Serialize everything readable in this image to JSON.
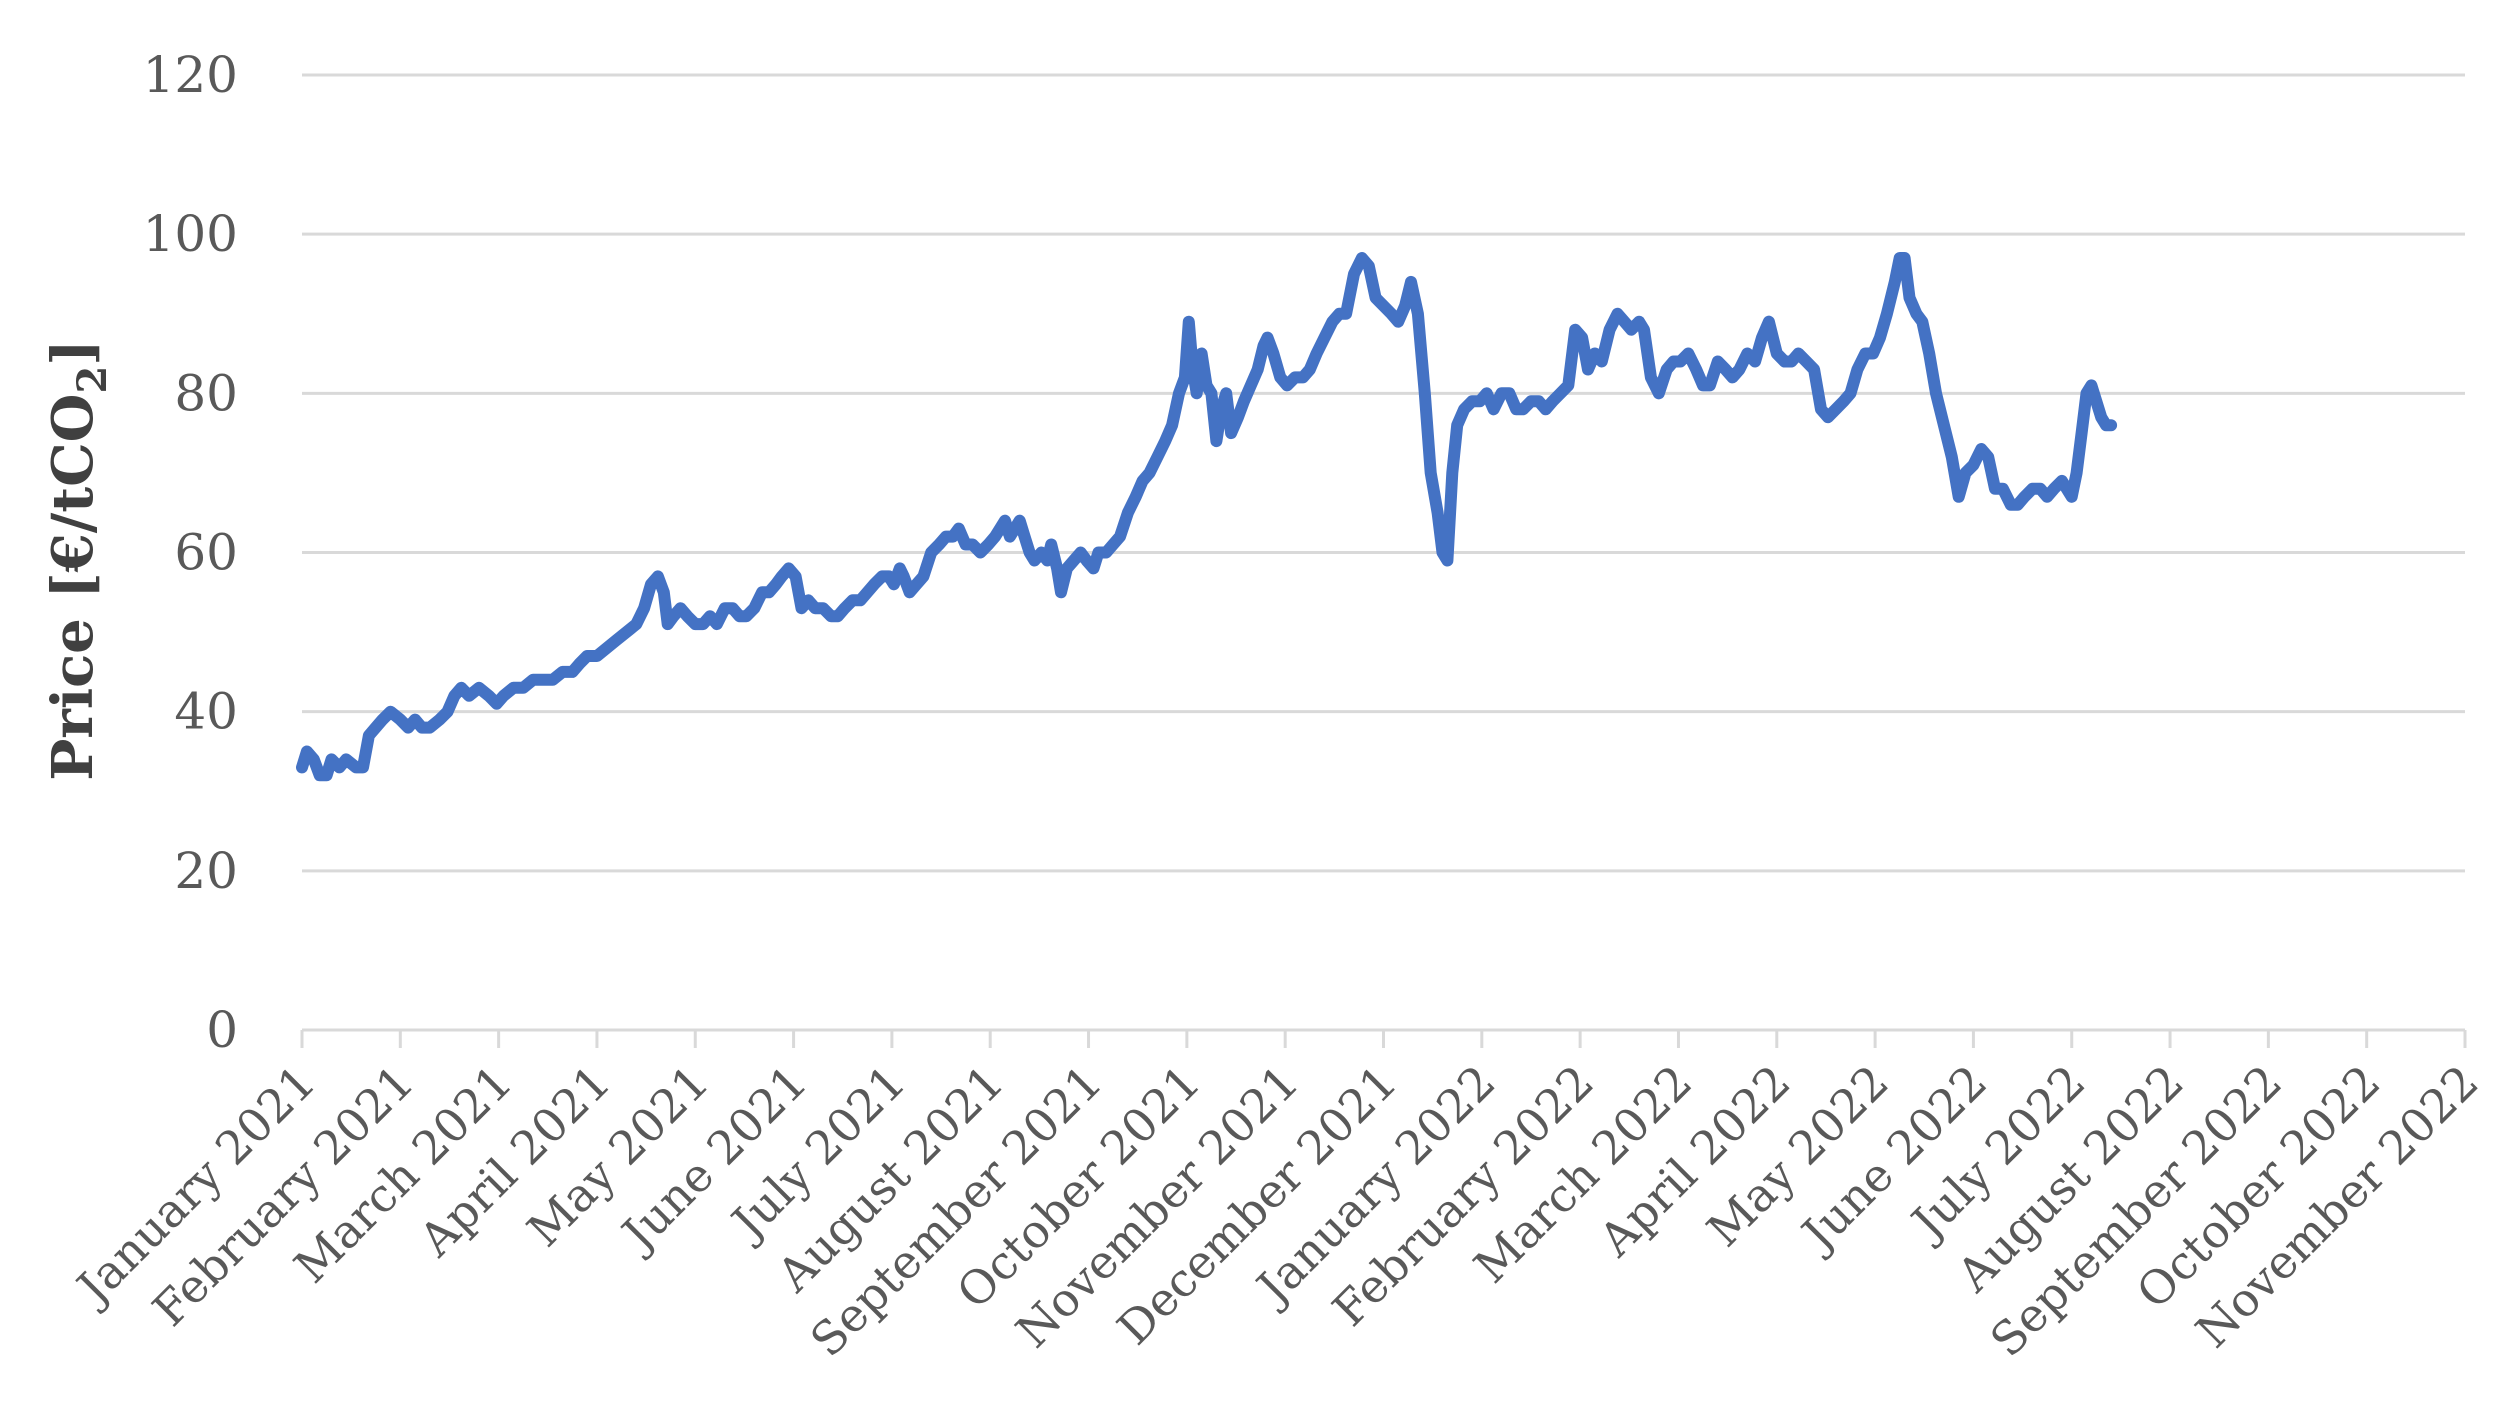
{
  "chart_data": {
    "type": "line",
    "title": "",
    "xlabel": "",
    "ylabel": "Price [€/tCO",
    "ylabel_subscript": "2",
    "ylabel_suffix": "]",
    "ylim": [
      0,
      120
    ],
    "yticks": [
      0,
      20,
      40,
      60,
      80,
      100,
      120
    ],
    "grid": true,
    "legend": "none",
    "categories": [
      "January 2021",
      "February 2021",
      "March 2021",
      "April 2021",
      "May 2021",
      "June 2021",
      "July 2021",
      "August 2021",
      "September 2021",
      "October 2021",
      "November 2021",
      "December 2021",
      "January 2022",
      "February 2022",
      "March 2022",
      "April 2022",
      "May 2022",
      "June 2022",
      "July 2022",
      "August 2022",
      "September 2022",
      "October 2022",
      "November 2022"
    ],
    "series": [
      {
        "color": "#4472c4",
        "points": [
          [
            0.0,
            33
          ],
          [
            0.05,
            35
          ],
          [
            0.12,
            34
          ],
          [
            0.18,
            32
          ],
          [
            0.25,
            32
          ],
          [
            0.3,
            34
          ],
          [
            0.38,
            33
          ],
          [
            0.45,
            34
          ],
          [
            0.55,
            33
          ],
          [
            0.62,
            33
          ],
          [
            0.68,
            37
          ],
          [
            0.75,
            38
          ],
          [
            0.82,
            39
          ],
          [
            0.9,
            40
          ],
          [
            1.0,
            39
          ],
          [
            1.08,
            38
          ],
          [
            1.15,
            39
          ],
          [
            1.22,
            38
          ],
          [
            1.3,
            38
          ],
          [
            1.4,
            39
          ],
          [
            1.48,
            40
          ],
          [
            1.55,
            42
          ],
          [
            1.62,
            43
          ],
          [
            1.7,
            42
          ],
          [
            1.8,
            43
          ],
          [
            1.9,
            42
          ],
          [
            1.98,
            41
          ],
          [
            2.05,
            42
          ],
          [
            2.15,
            43
          ],
          [
            2.25,
            43
          ],
          [
            2.35,
            44
          ],
          [
            2.45,
            44
          ],
          [
            2.55,
            44
          ],
          [
            2.65,
            45
          ],
          [
            2.75,
            45
          ],
          [
            2.82,
            46
          ],
          [
            2.9,
            47
          ],
          [
            3.0,
            47
          ],
          [
            3.1,
            48
          ],
          [
            3.2,
            49
          ],
          [
            3.3,
            50
          ],
          [
            3.4,
            51
          ],
          [
            3.48,
            53
          ],
          [
            3.55,
            56
          ],
          [
            3.62,
            57
          ],
          [
            3.68,
            55
          ],
          [
            3.72,
            51
          ],
          [
            3.78,
            52
          ],
          [
            3.85,
            53
          ],
          [
            3.92,
            52
          ],
          [
            4.0,
            51
          ],
          [
            4.08,
            51
          ],
          [
            4.15,
            52
          ],
          [
            4.22,
            51
          ],
          [
            4.3,
            53
          ],
          [
            4.38,
            53
          ],
          [
            4.45,
            52
          ],
          [
            4.52,
            52
          ],
          [
            4.6,
            53
          ],
          [
            4.68,
            55
          ],
          [
            4.75,
            55
          ],
          [
            4.82,
            56
          ],
          [
            4.88,
            57
          ],
          [
            4.95,
            58
          ],
          [
            5.02,
            57
          ],
          [
            5.08,
            53
          ],
          [
            5.15,
            54
          ],
          [
            5.22,
            53
          ],
          [
            5.3,
            53
          ],
          [
            5.38,
            52
          ],
          [
            5.45,
            52
          ],
          [
            5.52,
            53
          ],
          [
            5.6,
            54
          ],
          [
            5.68,
            54
          ],
          [
            5.75,
            55
          ],
          [
            5.82,
            56
          ],
          [
            5.9,
            57
          ],
          [
            5.97,
            57
          ],
          [
            6.02,
            56
          ],
          [
            6.08,
            58
          ],
          [
            6.12,
            57
          ],
          [
            6.18,
            55
          ],
          [
            6.25,
            56
          ],
          [
            6.32,
            57
          ],
          [
            6.4,
            60
          ],
          [
            6.48,
            61
          ],
          [
            6.55,
            62
          ],
          [
            6.62,
            62
          ],
          [
            6.68,
            63
          ],
          [
            6.75,
            61
          ],
          [
            6.82,
            61
          ],
          [
            6.9,
            60
          ],
          [
            6.98,
            61
          ],
          [
            7.05,
            62
          ],
          [
            7.1,
            63
          ],
          [
            7.15,
            64
          ],
          [
            7.2,
            62
          ],
          [
            7.25,
            63
          ],
          [
            7.3,
            64
          ],
          [
            7.35,
            62
          ],
          [
            7.4,
            60
          ],
          [
            7.45,
            59
          ],
          [
            7.52,
            60
          ],
          [
            7.58,
            59
          ],
          [
            7.62,
            61
          ],
          [
            7.68,
            58
          ],
          [
            7.72,
            55
          ],
          [
            7.78,
            58
          ],
          [
            7.85,
            59
          ],
          [
            7.92,
            60
          ],
          [
            7.98,
            59
          ],
          [
            8.05,
            58
          ],
          [
            8.1,
            60
          ],
          [
            8.18,
            60
          ],
          [
            8.25,
            61
          ],
          [
            8.32,
            62
          ],
          [
            8.4,
            65
          ],
          [
            8.48,
            67
          ],
          [
            8.55,
            69
          ],
          [
            8.62,
            70
          ],
          [
            8.7,
            72
          ],
          [
            8.78,
            74
          ],
          [
            8.85,
            76
          ],
          [
            8.92,
            80
          ],
          [
            8.98,
            82
          ],
          [
            9.02,
            89
          ],
          [
            9.06,
            83
          ],
          [
            9.1,
            80
          ],
          [
            9.15,
            85
          ],
          [
            9.2,
            81
          ],
          [
            9.25,
            80
          ],
          [
            9.3,
            74
          ],
          [
            9.35,
            78
          ],
          [
            9.4,
            80
          ],
          [
            9.45,
            75
          ],
          [
            9.52,
            77
          ],
          [
            9.58,
            79
          ],
          [
            9.65,
            81
          ],
          [
            9.72,
            83
          ],
          [
            9.78,
            86
          ],
          [
            9.82,
            87
          ],
          [
            9.88,
            85
          ],
          [
            9.95,
            82
          ],
          [
            10.02,
            81
          ],
          [
            10.1,
            82
          ],
          [
            10.18,
            82
          ],
          [
            10.25,
            83
          ],
          [
            10.32,
            85
          ],
          [
            10.4,
            87
          ],
          [
            10.48,
            89
          ],
          [
            10.55,
            90
          ],
          [
            10.62,
            90
          ],
          [
            10.7,
            95
          ],
          [
            10.78,
            97
          ],
          [
            10.85,
            96
          ],
          [
            10.92,
            92
          ],
          [
            11.0,
            91
          ],
          [
            11.08,
            90
          ],
          [
            11.15,
            89
          ],
          [
            11.22,
            91
          ],
          [
            11.28,
            94
          ],
          [
            11.35,
            90
          ],
          [
            11.42,
            80
          ],
          [
            11.48,
            70
          ],
          [
            11.55,
            65
          ],
          [
            11.6,
            60
          ],
          [
            11.65,
            59
          ],
          [
            11.7,
            70
          ],
          [
            11.75,
            76
          ],
          [
            11.82,
            78
          ],
          [
            11.9,
            79
          ],
          [
            11.98,
            79
          ],
          [
            12.05,
            80
          ],
          [
            12.12,
            78
          ],
          [
            12.2,
            80
          ],
          [
            12.28,
            80
          ],
          [
            12.35,
            78
          ],
          [
            12.42,
            78
          ],
          [
            12.5,
            79
          ],
          [
            12.58,
            79
          ],
          [
            12.65,
            78
          ],
          [
            12.72,
            79
          ],
          [
            12.8,
            80
          ],
          [
            12.88,
            81
          ],
          [
            12.95,
            88
          ],
          [
            13.02,
            87
          ],
          [
            13.08,
            83
          ],
          [
            13.15,
            85
          ],
          [
            13.22,
            84
          ],
          [
            13.3,
            88
          ],
          [
            13.38,
            90
          ],
          [
            13.45,
            89
          ],
          [
            13.52,
            88
          ],
          [
            13.6,
            89
          ],
          [
            13.65,
            88
          ],
          [
            13.72,
            82
          ],
          [
            13.8,
            80
          ],
          [
            13.88,
            83
          ],
          [
            13.95,
            84
          ],
          [
            14.02,
            84
          ],
          [
            14.1,
            85
          ],
          [
            14.18,
            83
          ],
          [
            14.25,
            81
          ],
          [
            14.32,
            81
          ],
          [
            14.4,
            84
          ],
          [
            14.48,
            83
          ],
          [
            14.55,
            82
          ],
          [
            14.62,
            83
          ],
          [
            14.7,
            85
          ],
          [
            14.78,
            84
          ],
          [
            14.85,
            87
          ],
          [
            14.92,
            89
          ],
          [
            15.0,
            85
          ],
          [
            15.08,
            84
          ],
          [
            15.15,
            84
          ],
          [
            15.22,
            85
          ],
          [
            15.3,
            84
          ],
          [
            15.38,
            83
          ],
          [
            15.45,
            78
          ],
          [
            15.52,
            77
          ],
          [
            15.6,
            78
          ],
          [
            15.68,
            79
          ],
          [
            15.75,
            80
          ],
          [
            15.82,
            83
          ],
          [
            15.9,
            85
          ],
          [
            15.98,
            85
          ],
          [
            16.05,
            87
          ],
          [
            16.12,
            90
          ],
          [
            16.2,
            94
          ],
          [
            16.25,
            97
          ],
          [
            16.3,
            97
          ],
          [
            16.35,
            92
          ],
          [
            16.42,
            90
          ],
          [
            16.48,
            89
          ],
          [
            16.55,
            85
          ],
          [
            16.62,
            80
          ],
          [
            16.7,
            76
          ],
          [
            16.78,
            72
          ],
          [
            16.85,
            67
          ],
          [
            16.92,
            70
          ],
          [
            17.0,
            71
          ],
          [
            17.08,
            73
          ],
          [
            17.15,
            72
          ],
          [
            17.22,
            68
          ],
          [
            17.3,
            68
          ],
          [
            17.38,
            66
          ],
          [
            17.45,
            66
          ],
          [
            17.52,
            67
          ],
          [
            17.6,
            68
          ],
          [
            17.68,
            68
          ],
          [
            17.75,
            67
          ],
          [
            17.82,
            68
          ],
          [
            17.9,
            69
          ],
          [
            17.95,
            68
          ],
          [
            18.0,
            67
          ],
          [
            18.05,
            70
          ],
          [
            18.1,
            75
          ],
          [
            18.15,
            80
          ],
          [
            18.2,
            81
          ],
          [
            18.25,
            79
          ],
          [
            18.3,
            77
          ],
          [
            18.35,
            76
          ],
          [
            18.4,
            76
          ]
        ]
      }
    ]
  }
}
